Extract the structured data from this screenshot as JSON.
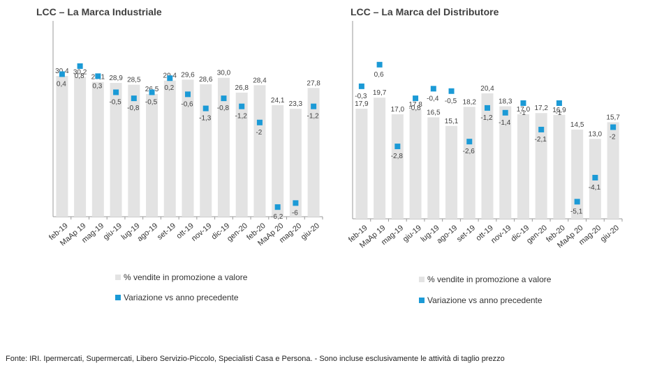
{
  "chart_data": [
    {
      "type": "bar",
      "title": "LCC – La Marca Industriale",
      "categories": [
        "feb-19",
        "MaAp 19",
        "mag-19",
        "giu-19",
        "lug-19",
        "ago-19",
        "set-19",
        "ott-19",
        "nov-19",
        "dic-19",
        "gen-20",
        "feb-20",
        "MaAp 20",
        "mag-20",
        "giu-20"
      ],
      "series": [
        {
          "name": "% vendite in promozione a valore",
          "kind": "bar",
          "values": [
            30.4,
            30.2,
            29.1,
            28.9,
            28.5,
            26.5,
            29.4,
            29.6,
            28.6,
            30.0,
            26.8,
            28.4,
            24.1,
            23.3,
            27.8
          ],
          "labels": [
            "30,4",
            "30,2",
            "29,1",
            "28,9",
            "28,5",
            "26,5",
            "29,4",
            "29,6",
            "28,6",
            "30,0",
            "26,8",
            "28,4",
            "24,1",
            "23,3",
            "27,8"
          ]
        },
        {
          "name": "Variazione vs anno precedente",
          "kind": "point",
          "values": [
            0.4,
            0.8,
            0.3,
            -0.5,
            -0.8,
            -0.5,
            0.2,
            -0.6,
            -1.3,
            -0.8,
            -1.2,
            -2,
            -6.2,
            -6,
            -1.2
          ],
          "labels": [
            "0,4",
            "0,8",
            "0,3",
            "-0,5",
            "-0,8",
            "-0,5",
            "0,2",
            "-0,6",
            "-1,3",
            "-0,8",
            "-1,2",
            "-2",
            "-6,2",
            "-6",
            "-1,2"
          ]
        }
      ]
    },
    {
      "type": "bar",
      "title": "LCC – La Marca del Distributore",
      "categories": [
        "feb-19",
        "MaAp 19",
        "mag-19",
        "giu-19",
        "lug-19",
        "ago-19",
        "set-19",
        "ott-19",
        "nov-19",
        "dic-19",
        "gen-20",
        "feb-20",
        "MaAp 20",
        "mag-20",
        "giu-20"
      ],
      "series": [
        {
          "name": "% vendite in promozione a valore",
          "kind": "bar",
          "values": [
            17.9,
            19.7,
            17.0,
            17.8,
            16.5,
            15.1,
            18.2,
            20.4,
            18.3,
            17.0,
            17.2,
            16.9,
            14.5,
            13.0,
            15.7
          ],
          "labels": [
            "17,9",
            "19,7",
            "17,0",
            "17,8",
            "16,5",
            "15,1",
            "18,2",
            "20,4",
            "18,3",
            "17,0",
            "17,2",
            "16,9",
            "14,5",
            "13,0",
            "15,7"
          ]
        },
        {
          "name": "Variazione vs anno precedente",
          "kind": "point",
          "values": [
            -0.3,
            0.6,
            -2.8,
            -0.8,
            -0.4,
            -0.5,
            -2.6,
            -1.2,
            -1.4,
            -1,
            -2.1,
            -1,
            -5.1,
            -4.1,
            -2
          ],
          "labels": [
            "-0,3",
            "0,6",
            "-2,8",
            "-0,8",
            "-0,4",
            "-0,5",
            "-2,6",
            "-1,2",
            "-1,4",
            "-1",
            "-2,1",
            "-1",
            "-5,1",
            "-4,1",
            "-2"
          ]
        }
      ]
    }
  ],
  "colors": {
    "bar": "#e3e3e3",
    "point": "#1b9ad6",
    "axis": "#999999"
  },
  "legend": {
    "bar_label": "% vendite in promozione a valore",
    "point_label": "Variazione vs anno precedente"
  },
  "source": "Fonte: IRI. Ipermercati, Supermercati, Libero Servizio-Piccolo, Specialisti Casa e Persona. - Sono incluse esclusivamente le attività di taglio prezzo"
}
